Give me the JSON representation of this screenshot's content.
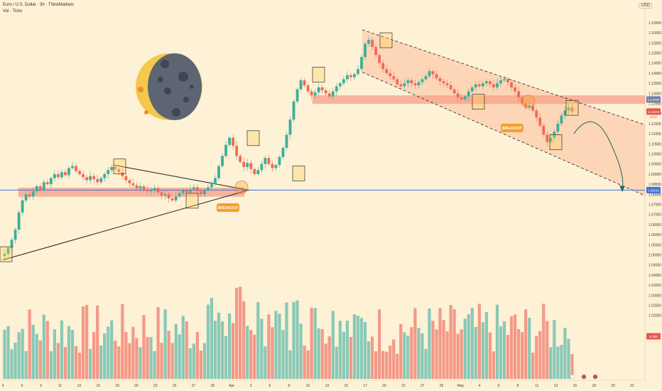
{
  "header": {
    "symbol_line": "Euro / U.S. Dollar · 3h · ThinkMarkets",
    "vol_line": "Vol · Ticks"
  },
  "currency_button": "USD",
  "price_tags": {
    "level_blue": "1.08210",
    "current": "1.12103",
    "current_sub": "23:57",
    "zone_top": "1.12760",
    "volume": "5.386"
  },
  "annotations": {
    "breakout_1": "BREAKOUT",
    "breakout_2": "BREAKOUT"
  },
  "colors": {
    "background": "#fdf1d6",
    "up": "#3fae97",
    "down": "#ee6b59",
    "vol_up": "#7cc4b2",
    "vol_down": "#f28f80",
    "zone": "#f06b5a",
    "channel": "#f8a37e",
    "blue_line": "#3f6fd8",
    "label_orange": "#f4a02b"
  },
  "chart_data": {
    "type": "candlestick",
    "ylim": [
      1.0185,
      1.1685
    ],
    "y_ticks": [
      "1.16500",
      "1.16000",
      "1.15500",
      "1.15000",
      "1.14500",
      "1.14000",
      "1.13500",
      "1.13000",
      "1.12500",
      "1.12000",
      "1.11500",
      "1.11000",
      "1.10500",
      "1.10000",
      "1.09500",
      "1.09000",
      "1.08500",
      "1.08000",
      "1.07500",
      "1.07000",
      "1.06500",
      "1.06000",
      "1.05500",
      "1.05000",
      "1.04500",
      "1.04000",
      "1.03500",
      "1.03000",
      "1.02500",
      "1.02000"
    ],
    "x_ticks": [
      "4",
      "6",
      "9",
      "11",
      "13",
      "16",
      "18",
      "20",
      "23",
      "25",
      "27",
      "30",
      "Apr",
      "3",
      "6",
      "8",
      "10",
      "13",
      "15",
      "17",
      "20",
      "22",
      "27",
      "29",
      "May",
      "4",
      "6",
      "8",
      "11",
      "13",
      "15",
      "18",
      "20",
      "22"
    ],
    "horizontal_level": 1.0821,
    "resistance_zone": [
      1.1249,
      1.1289
    ],
    "support_zone": [
      1.0789,
      1.0832
    ],
    "channel_upper_from": [
      1.1615,
      1.1148
    ],
    "channel_lower_from": [
      1.1405,
      1.0885
    ],
    "closes": [
      1.0505,
      1.0535,
      1.0575,
      1.0625,
      1.071,
      1.077,
      1.08,
      1.079,
      1.0815,
      1.084,
      1.082,
      1.086,
      1.085,
      1.088,
      1.09,
      1.0885,
      1.091,
      1.0895,
      1.093,
      1.094,
      1.0915,
      1.09,
      1.0885,
      1.087,
      1.089,
      1.0875,
      1.086,
      1.088,
      1.09,
      1.092,
      1.0935,
      1.0925,
      1.091,
      1.089,
      1.087,
      1.0855,
      1.0845,
      1.083,
      1.084,
      1.0825,
      1.0815,
      1.082,
      1.083,
      1.081,
      1.0795,
      1.08,
      1.078,
      1.077,
      1.079,
      1.0805,
      1.082,
      1.081,
      1.0825,
      1.0835,
      1.0815,
      1.08,
      1.082,
      1.0835,
      1.085,
      1.088,
      1.094,
      1.099,
      1.1045,
      1.108,
      1.104,
      1.099,
      1.096,
      1.0935,
      1.0955,
      1.0925,
      1.09,
      1.092,
      1.095,
      1.098,
      1.095,
      1.093,
      1.0945,
      1.0985,
      1.103,
      1.1095,
      1.117,
      1.126,
      1.132,
      1.1365,
      1.134,
      1.131,
      1.129,
      1.1305,
      1.133,
      1.1315,
      1.13,
      1.1285,
      1.131,
      1.1335,
      1.135,
      1.137,
      1.139,
      1.138,
      1.1395,
      1.142,
      1.148,
      1.1545,
      1.1565,
      1.153,
      1.149,
      1.145,
      1.142,
      1.14,
      1.1385,
      1.137,
      1.1345,
      1.1335,
      1.135,
      1.1365,
      1.135,
      1.134,
      1.1355,
      1.137,
      1.1385,
      1.141,
      1.1395,
      1.1375,
      1.136,
      1.135,
      1.134,
      1.132,
      1.13,
      1.128,
      1.127,
      1.1285,
      1.131,
      1.133,
      1.1345,
      1.1335,
      1.135,
      1.136,
      1.1345,
      1.133,
      1.135,
      1.1365,
      1.137,
      1.1355,
      1.133,
      1.131,
      1.128,
      1.125,
      1.123,
      1.124,
      1.1215,
      1.118,
      1.114,
      1.1095,
      1.106,
      1.108,
      1.111,
      1.115,
      1.119,
      1.1215,
      1.123,
      1.121
    ]
  }
}
